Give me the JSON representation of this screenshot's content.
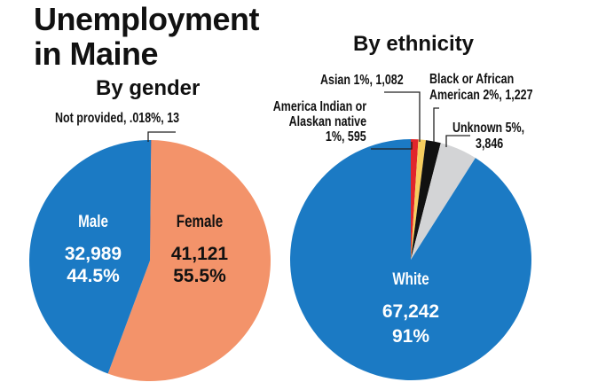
{
  "title_line1": "Unemployment",
  "title_line2": "in Maine",
  "chart_data": [
    {
      "type": "pie",
      "title": "By gender",
      "slices": [
        {
          "label": "Not provided",
          "percent": 0.018,
          "count": 13,
          "color": "#e0262b",
          "display": "Not provided, .018%, 13"
        },
        {
          "label": "Female",
          "percent": 55.5,
          "count": 41121,
          "color": "#f3936a",
          "count_text": "41,121",
          "pct_text": "55.5%"
        },
        {
          "label": "Male",
          "percent": 44.5,
          "count": 32989,
          "color": "#1b7ac4",
          "count_text": "32,989",
          "pct_text": "44.5%"
        }
      ]
    },
    {
      "type": "pie",
      "title": "By ethnicity",
      "slices": [
        {
          "label": "America Indian or Alaskan native",
          "percent": 1,
          "count": 595,
          "color": "#e0262b",
          "line1": "America Indian or",
          "line2": "Alaskan native",
          "line3": "1%, 595"
        },
        {
          "label": "Asian",
          "percent": 1,
          "count": 1082,
          "color": "#f6cd5e",
          "display": "Asian 1%, 1,082"
        },
        {
          "label": "Black or African American",
          "percent": 2,
          "count": 1227,
          "color": "#111111",
          "line1": "Black or African",
          "line2": "American 2%, 1,227"
        },
        {
          "label": "Unknown",
          "percent": 5,
          "count": 3846,
          "color": "#d3d4d6",
          "line1": "Unknown 5%,",
          "line2": "3,846"
        },
        {
          "label": "White",
          "percent": 91,
          "count": 67242,
          "color": "#1b7ac4",
          "count_text": "67,242",
          "pct_text": "91%"
        }
      ]
    }
  ]
}
